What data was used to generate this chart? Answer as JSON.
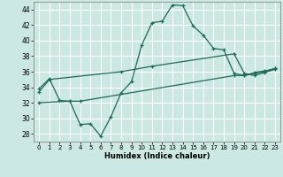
{
  "xlabel": "Humidex (Indice chaleur)",
  "bg_color": "#cce8e4",
  "grid_color": "#ffffff",
  "line_color": "#1a6b5a",
  "xlim": [
    -0.5,
    23.5
  ],
  "ylim": [
    27,
    45
  ],
  "xticks": [
    0,
    1,
    2,
    3,
    4,
    5,
    6,
    7,
    8,
    9,
    10,
    11,
    12,
    13,
    14,
    15,
    16,
    17,
    18,
    19,
    20,
    21,
    22,
    23
  ],
  "yticks": [
    28,
    30,
    32,
    34,
    36,
    38,
    40,
    42,
    44
  ],
  "line1_x": [
    0,
    1,
    2,
    3,
    4,
    5,
    6,
    7,
    8,
    9,
    10,
    11,
    12,
    13,
    14,
    15,
    16,
    17,
    18,
    19,
    20,
    21,
    22,
    23
  ],
  "line1_y": [
    33.8,
    35.1,
    32.3,
    32.2,
    29.2,
    29.3,
    27.7,
    30.2,
    33.3,
    34.7,
    39.4,
    42.3,
    42.5,
    44.6,
    44.5,
    41.9,
    40.7,
    39.0,
    38.8,
    35.8,
    35.5,
    35.9,
    36.1,
    36.4
  ],
  "line2_x": [
    0,
    1,
    8,
    11,
    19,
    20,
    21,
    22,
    23
  ],
  "line2_y": [
    33.4,
    35.0,
    36.0,
    36.7,
    38.3,
    35.8,
    35.5,
    35.9,
    36.3
  ],
  "line3_x": [
    0,
    3,
    4,
    19,
    20,
    21,
    22,
    23
  ],
  "line3_y": [
    32.0,
    32.2,
    32.2,
    35.5,
    35.5,
    35.8,
    36.0,
    36.4
  ]
}
